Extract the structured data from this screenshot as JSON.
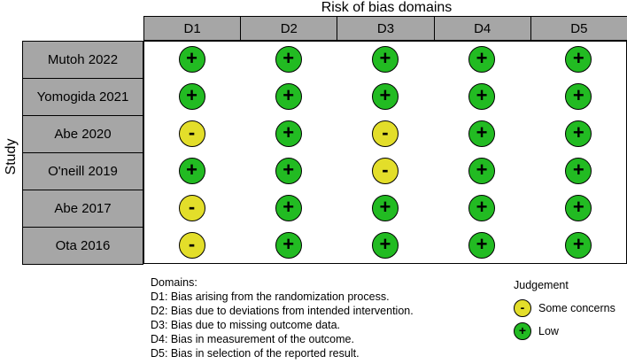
{
  "header": {
    "domains_title": "Risk of bias domains"
  },
  "axis": {
    "study_label": "Study"
  },
  "domains": [
    "D1",
    "D2",
    "D3",
    "D4",
    "D5"
  ],
  "studies": [
    {
      "name": "Mutoh 2022",
      "judgements": [
        "low",
        "low",
        "low",
        "low",
        "low"
      ]
    },
    {
      "name": "Yomogida 2021",
      "judgements": [
        "low",
        "low",
        "low",
        "low",
        "low"
      ]
    },
    {
      "name": "Abe 2020",
      "judgements": [
        "some",
        "low",
        "some",
        "low",
        "low"
      ]
    },
    {
      "name": "O'neill 2019",
      "judgements": [
        "low",
        "low",
        "some",
        "low",
        "low"
      ]
    },
    {
      "name": "Abe 2017",
      "judgements": [
        "some",
        "low",
        "low",
        "low",
        "low"
      ]
    },
    {
      "name": "Ota 2016",
      "judgements": [
        "some",
        "low",
        "low",
        "low",
        "low"
      ]
    }
  ],
  "symbols": {
    "low": "+",
    "some": "-"
  },
  "colors": {
    "low": "#22bb22",
    "some": "#e3de2a",
    "header_bg": "#a6a6a6"
  },
  "notes": {
    "title": "Domains:",
    "lines": [
      "D1: Bias arising from the randomization process.",
      "D2: Bias due to deviations from intended intervention.",
      "D3: Bias due to missing outcome data.",
      "D4: Bias in measurement of the outcome.",
      "D5: Bias in selection of the reported result."
    ]
  },
  "legend": {
    "title": "Judgement",
    "items": [
      {
        "key": "some",
        "symbol": "-",
        "label": "Some concerns"
      },
      {
        "key": "low",
        "symbol": "+",
        "label": "Low"
      }
    ]
  }
}
